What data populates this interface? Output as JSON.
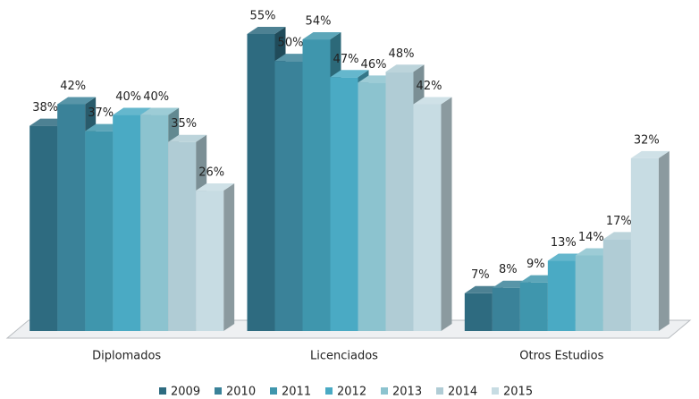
{
  "chart_data": {
    "type": "bar3d",
    "categories": [
      "Diplomados",
      "Licenciados",
      "Otros Estudios"
    ],
    "series": [
      {
        "name": "2009",
        "color": "#2e6b80",
        "values": [
          38,
          55,
          7
        ],
        "value_labels": [
          "38%",
          "55%",
          "7%"
        ]
      },
      {
        "name": "2010",
        "color": "#3a8299",
        "values": [
          42,
          50,
          8
        ],
        "value_labels": [
          "42%",
          "50%",
          "8%"
        ]
      },
      {
        "name": "2011",
        "color": "#3f96ad",
        "values": [
          37,
          54,
          9
        ],
        "value_labels": [
          "37%",
          "54%",
          "9%"
        ]
      },
      {
        "name": "2012",
        "color": "#4aaac4",
        "values": [
          40,
          47,
          13
        ],
        "value_labels": [
          "40%",
          "47%",
          "13%"
        ]
      },
      {
        "name": "2013",
        "color": "#8cc3cf",
        "values": [
          40,
          46,
          14
        ],
        "value_labels": [
          "40%",
          "46%",
          "14%"
        ]
      },
      {
        "name": "2014",
        "color": "#b0ccd5",
        "values": [
          35,
          48,
          17
        ],
        "value_labels": [
          "35%",
          "48%",
          "17%"
        ]
      },
      {
        "name": "2015",
        "color": "#c7dce3",
        "values": [
          26,
          42,
          32
        ],
        "value_labels": [
          "26%",
          "42%",
          "32%"
        ]
      }
    ],
    "legend": "bottom"
  }
}
